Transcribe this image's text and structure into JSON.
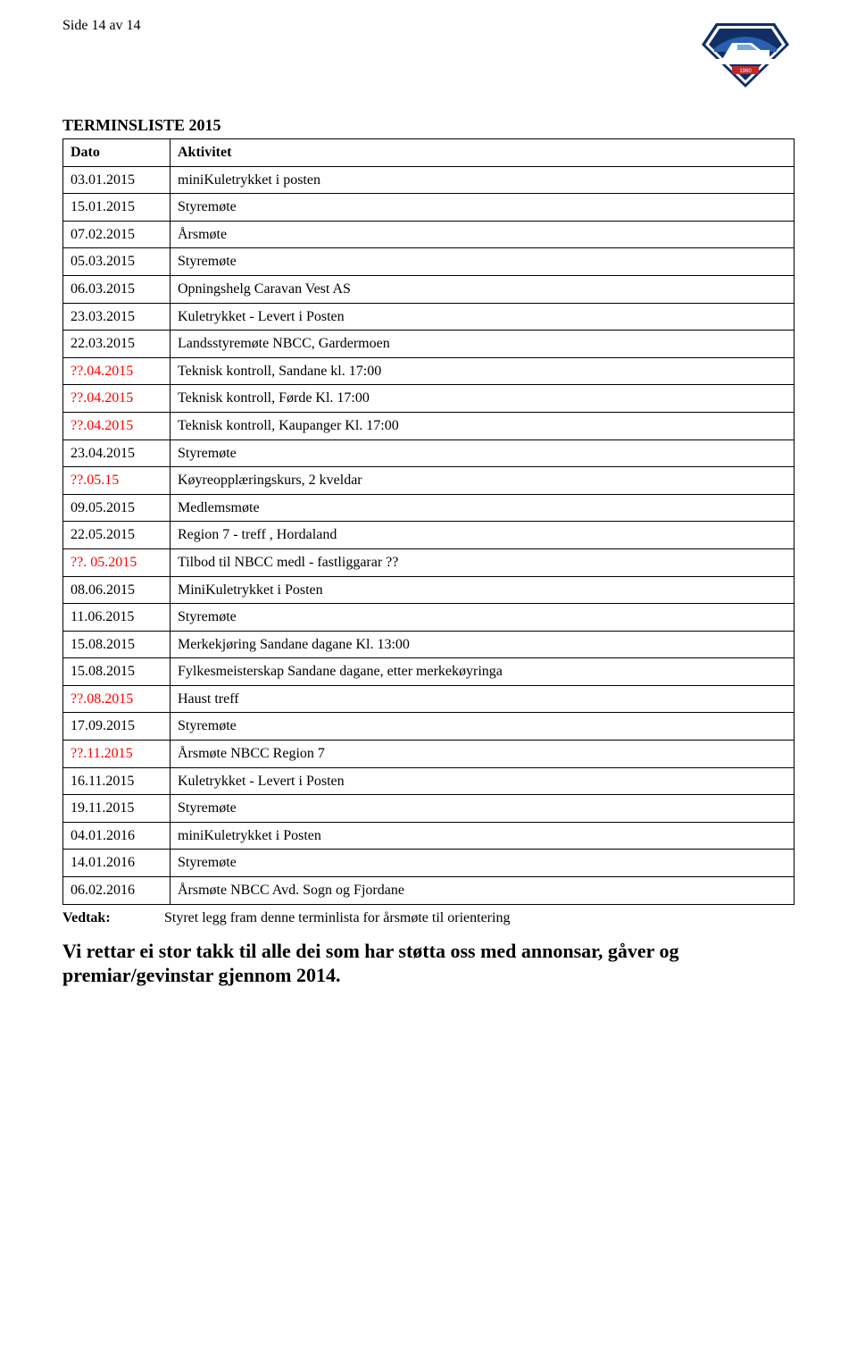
{
  "header": {
    "page_ref": "Side 14 av 14",
    "logo_alt": "Norsk Bobil og Caravan Club",
    "logo_colors": {
      "navy": "#0f2f66",
      "blue": "#2a5fb0",
      "red": "#c1272d",
      "white": "#ffffff",
      "sky": "#7ba9d8"
    }
  },
  "title": "TERMINSLISTE 2015",
  "table": {
    "headers": {
      "dato": "Dato",
      "aktivitet": "Aktivitet"
    },
    "rows": [
      {
        "dato": "03.01.2015",
        "red": false,
        "akt": "miniKuletrykket i posten"
      },
      {
        "dato": "15.01.2015",
        "red": false,
        "akt": "Styremøte"
      },
      {
        "dato": "07.02.2015",
        "red": false,
        "akt": "Årsmøte"
      },
      {
        "dato": "05.03.2015",
        "red": false,
        "akt": "Styremøte"
      },
      {
        "dato": "06.03.2015",
        "red": false,
        "akt": "Opningshelg Caravan Vest AS"
      },
      {
        "dato": "23.03.2015",
        "red": false,
        "akt": "Kuletrykket - Levert i Posten"
      },
      {
        "dato": "22.03.2015",
        "red": false,
        "akt": "Landsstyremøte NBCC, Gardermoen"
      },
      {
        "dato": "??.04.2015",
        "red": true,
        "akt": "Teknisk kontroll, Sandane kl. 17:00"
      },
      {
        "dato": "??.04.2015",
        "red": true,
        "akt": "Teknisk kontroll, Førde Kl. 17:00"
      },
      {
        "dato": "??.04.2015",
        "red": true,
        "akt": "Teknisk kontroll, Kaupanger Kl. 17:00"
      },
      {
        "dato": "23.04.2015",
        "red": false,
        "akt": "Styremøte"
      },
      {
        "dato": "??.05.15",
        "red": true,
        "akt": "Køyreopplæringskurs, 2 kveldar"
      },
      {
        "dato": "09.05.2015",
        "red": false,
        "akt": "Medlemsmøte"
      },
      {
        "dato": "22.05.2015",
        "red": false,
        "akt": "Region 7 - treff , Hordaland"
      },
      {
        "dato": "??. 05.2015",
        "red": true,
        "akt": "Tilbod til NBCC medl - fastliggarar ??"
      },
      {
        "dato": "08.06.2015",
        "red": false,
        "akt": "MiniKuletrykket i Posten"
      },
      {
        "dato": "11.06.2015",
        "red": false,
        "akt": "Styremøte"
      },
      {
        "dato": "15.08.2015",
        "red": false,
        "akt": "Merkekjøring Sandane dagane Kl. 13:00"
      },
      {
        "dato": "15.08.2015",
        "red": false,
        "akt": "Fylkesmeisterskap Sandane dagane, etter merkekøyringa"
      },
      {
        "dato": "??.08.2015",
        "red": true,
        "akt": "Haust treff"
      },
      {
        "dato": "17.09.2015",
        "red": false,
        "akt": "Styremøte"
      },
      {
        "dato": "??.11.2015",
        "red": true,
        "akt": "Årsmøte NBCC Region 7"
      },
      {
        "dato": "16.11.2015",
        "red": false,
        "akt": "Kuletrykket - Levert i Posten"
      },
      {
        "dato": "19.11.2015",
        "red": false,
        "akt": "Styremøte"
      },
      {
        "dato": "04.01.2016",
        "red": false,
        "akt": "miniKuletrykket i Posten"
      },
      {
        "dato": "14.01.2016",
        "red": false,
        "akt": "Styremøte"
      },
      {
        "dato": "06.02.2016",
        "red": false,
        "akt": "Årsmøte NBCC Avd. Sogn og Fjordane"
      }
    ]
  },
  "vedtak": {
    "label": "Vedtak:",
    "text": "Styret legg fram denne terminlista for årsmøte til orientering"
  },
  "closing": "Vi rettar ei stor takk til alle dei som har støtta oss med annonsar, gåver og premiar/gevinstar gjennom 2014."
}
